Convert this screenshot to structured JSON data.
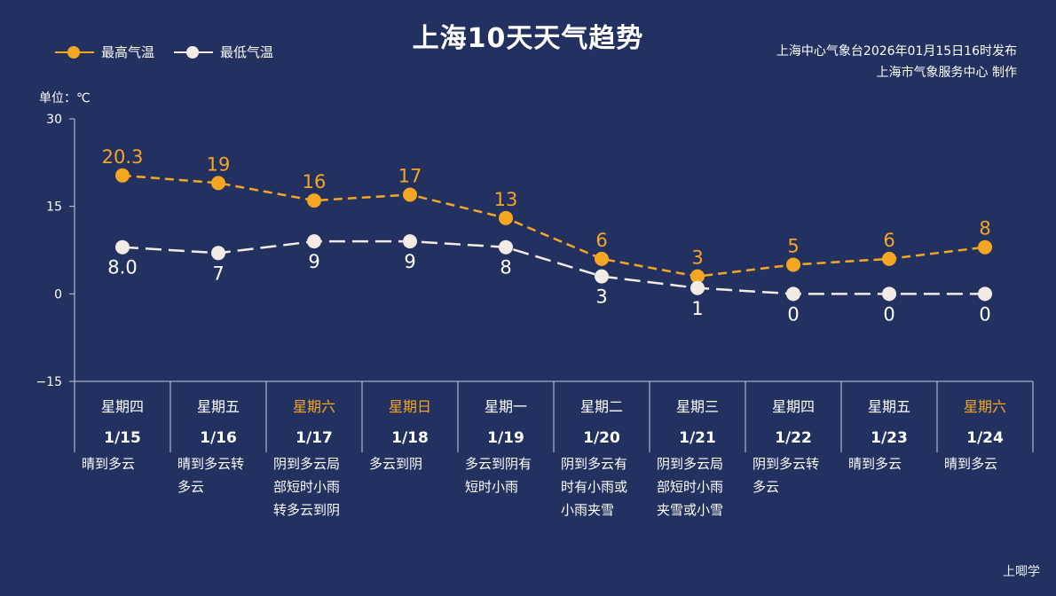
{
  "title": "上海10天天气趋势",
  "issuer": {
    "line1": "上海中心气象台2026年01月15日16时发布",
    "line2": "上海市气象服务中心  制作"
  },
  "unit": "单位：℃",
  "watermark": "上唧学",
  "colors": {
    "background": "#22315f",
    "high": "#f5a623",
    "low": "#f3ece6",
    "weekend": "#f5a623",
    "text": "#ffffff"
  },
  "chart_data": {
    "type": "line",
    "ylim": [
      -15,
      30
    ],
    "yticks": [
      "30",
      "15",
      "0",
      "−15"
    ],
    "yticks_values": [
      30,
      15,
      0,
      -15
    ],
    "categories": [
      "1/15",
      "1/16",
      "1/17",
      "1/18",
      "1/19",
      "1/20",
      "1/21",
      "1/22",
      "1/23",
      "1/24"
    ],
    "weekdays": [
      "星期四",
      "星期五",
      "星期六",
      "星期日",
      "星期一",
      "星期二",
      "星期三",
      "星期四",
      "星期五",
      "星期六"
    ],
    "weekend": [
      false,
      false,
      true,
      true,
      false,
      false,
      false,
      false,
      false,
      true
    ],
    "conditions": [
      [
        "晴到多云"
      ],
      [
        "晴到多云转",
        "多云"
      ],
      [
        "阴到多云局",
        "部短时小雨",
        "转多云到阴"
      ],
      [
        "多云到阴"
      ],
      [
        "多云到阴有",
        "短时小雨"
      ],
      [
        "阴到多云有",
        "时有小雨或",
        "小雨夹雪"
      ],
      [
        "阴到多云局",
        "部短时小雨",
        "夹雪或小雪"
      ],
      [
        "阴到多云转",
        "多云"
      ],
      [
        "晴到多云"
      ],
      [
        "晴到多云"
      ]
    ],
    "series": [
      {
        "name": "最高气温",
        "values": [
          20.3,
          19,
          16,
          17,
          13,
          6,
          3,
          5,
          6,
          8
        ],
        "labels": [
          "20.3",
          "19",
          "16",
          "17",
          "13",
          "6",
          "3",
          "5",
          "6",
          "8"
        ]
      },
      {
        "name": "最低气温",
        "values": [
          8.0,
          7,
          9,
          9,
          8,
          3,
          1,
          0,
          0,
          0
        ],
        "labels": [
          "8.0",
          "7",
          "9",
          "9",
          "8",
          "3",
          "1",
          "0",
          "0",
          "0"
        ]
      }
    ]
  }
}
